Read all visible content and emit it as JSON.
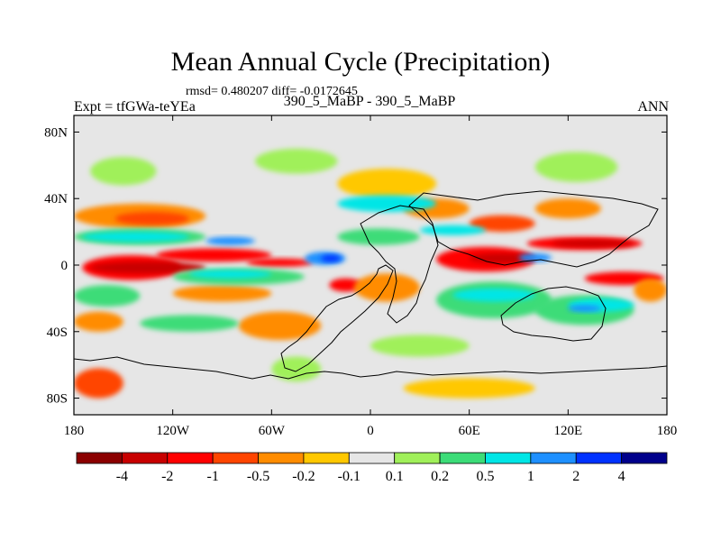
{
  "title": "Mean Annual Cycle (Precipitation)",
  "stats_line": "rmsd= 0.480207 diff= -0.0172645",
  "expt_label": "Expt = tfGWa-teYEa",
  "case_label": "390_5_MaBP - 390_5_MaBP",
  "season_label": "ANN",
  "chart_data": {
    "type": "heatmap",
    "title": "Mean Annual Cycle (Precipitation)",
    "variable": "Precipitation difference",
    "x_range": [
      -180,
      180
    ],
    "y_range": [
      -90,
      90
    ],
    "x_ticks": [
      {
        "value": -180,
        "label": "180"
      },
      {
        "value": -120,
        "label": "120W"
      },
      {
        "value": -60,
        "label": "60W"
      },
      {
        "value": 0,
        "label": "0"
      },
      {
        "value": 60,
        "label": "60E"
      },
      {
        "value": 120,
        "label": "120E"
      },
      {
        "value": 180,
        "label": "180"
      }
    ],
    "y_ticks": [
      {
        "value": 80,
        "label": "80N"
      },
      {
        "value": 40,
        "label": "40N"
      },
      {
        "value": 0,
        "label": "0"
      },
      {
        "value": -40,
        "label": "40S"
      },
      {
        "value": -80,
        "label": "80S"
      }
    ],
    "colorbar": {
      "colors": [
        "#8b0000",
        "#c80000",
        "#ff0000",
        "#ff4500",
        "#ff8c00",
        "#ffc800",
        "#e6e6e6",
        "#a0f05a",
        "#3cdc78",
        "#00e6e6",
        "#1e90ff",
        "#0032ff",
        "#00008b"
      ],
      "boundaries": [
        "-4",
        "-2",
        "-1",
        "-0.5",
        "-0.2",
        "-0.1",
        "0.1",
        "0.2",
        "0.5",
        "1",
        "2",
        "4"
      ]
    },
    "regions": [
      {
        "category": "decrease",
        "level": 3,
        "lon": [
          -175,
          -115
        ],
        "lat": [
          -9,
          6
        ]
      },
      {
        "category": "decrease",
        "level": 3,
        "lon": [
          -130,
          -60
        ],
        "lat": [
          2,
          10
        ]
      },
      {
        "category": "decrease",
        "level": 3,
        "lon": [
          -75,
          -35
        ],
        "lat": [
          -1,
          4
        ]
      },
      {
        "category": "decrease",
        "level": 3,
        "lon": [
          40,
          100
        ],
        "lat": [
          -4,
          11
        ]
      },
      {
        "category": "decrease",
        "level": 3,
        "lon": [
          95,
          165
        ],
        "lat": [
          9,
          17
        ]
      },
      {
        "category": "decrease",
        "level": 3,
        "lon": [
          130,
          178
        ],
        "lat": [
          -12,
          -4
        ]
      },
      {
        "category": "decrease",
        "level": 3,
        "lon": [
          -25,
          -5
        ],
        "lat": [
          -16,
          -8
        ]
      },
      {
        "category": "decrease",
        "level": 4,
        "lon": [
          -170,
          -100
        ],
        "lat": [
          -5,
          2
        ]
      },
      {
        "category": "decrease",
        "level": 4,
        "lon": [
          60,
          100
        ],
        "lat": [
          1,
          7
        ]
      },
      {
        "category": "decrease",
        "level": 4,
        "lon": [
          110,
          160
        ],
        "lat": [
          11,
          15
        ]
      },
      {
        "category": "decrease",
        "level": 1,
        "lon": [
          -180,
          -100
        ],
        "lat": [
          22,
          37
        ]
      },
      {
        "category": "decrease",
        "level": 1,
        "lon": [
          -80,
          -30
        ],
        "lat": [
          -45,
          -28
        ]
      },
      {
        "category": "decrease",
        "level": 1,
        "lon": [
          -180,
          -150
        ],
        "lat": [
          -40,
          -28
        ]
      },
      {
        "category": "decrease",
        "level": 1,
        "lon": [
          -120,
          -60
        ],
        "lat": [
          -22,
          -12
        ]
      },
      {
        "category": "decrease",
        "level": 1,
        "lon": [
          -10,
          30
        ],
        "lat": [
          -22,
          -5
        ]
      },
      {
        "category": "decrease",
        "level": 1,
        "lon": [
          160,
          180
        ],
        "lat": [
          -22,
          -8
        ]
      },
      {
        "category": "decrease",
        "level": 1,
        "lon": [
          20,
          60
        ],
        "lat": [
          28,
          40
        ]
      },
      {
        "category": "decrease",
        "level": 1,
        "lon": [
          100,
          140
        ],
        "lat": [
          28,
          40
        ]
      },
      {
        "category": "decrease",
        "level": 2,
        "lon": [
          -155,
          -110
        ],
        "lat": [
          24,
          32
        ]
      },
      {
        "category": "decrease",
        "level": 2,
        "lon": [
          60,
          100
        ],
        "lat": [
          20,
          30
        ]
      },
      {
        "category": "decrease",
        "level": 2,
        "lon": [
          -180,
          -150
        ],
        "lat": [
          -80,
          -62
        ]
      },
      {
        "category": "decrease",
        "level": 0,
        "lon": [
          -20,
          40
        ],
        "lat": [
          40,
          58
        ]
      },
      {
        "category": "decrease",
        "level": 0,
        "lon": [
          20,
          100
        ],
        "lat": [
          -80,
          -68
        ]
      },
      {
        "category": "increase",
        "level": 0,
        "lon": [
          -170,
          -130
        ],
        "lat": [
          48,
          65
        ]
      },
      {
        "category": "increase",
        "level": 0,
        "lon": [
          -70,
          -20
        ],
        "lat": [
          55,
          70
        ]
      },
      {
        "category": "increase",
        "level": 0,
        "lon": [
          100,
          150
        ],
        "lat": [
          50,
          68
        ]
      },
      {
        "category": "increase",
        "level": 0,
        "lon": [
          -60,
          -30
        ],
        "lat": [
          -70,
          -55
        ]
      },
      {
        "category": "increase",
        "level": 0,
        "lon": [
          0,
          60
        ],
        "lat": [
          -55,
          -42
        ]
      },
      {
        "category": "increase",
        "level": 1,
        "lon": [
          -180,
          -100
        ],
        "lat": [
          12,
          22
        ]
      },
      {
        "category": "increase",
        "level": 1,
        "lon": [
          -120,
          -40
        ],
        "lat": [
          -12,
          -2
        ]
      },
      {
        "category": "increase",
        "level": 1,
        "lon": [
          -180,
          -140
        ],
        "lat": [
          -25,
          -12
        ]
      },
      {
        "category": "increase",
        "level": 1,
        "lon": [
          -20,
          30
        ],
        "lat": [
          12,
          22
        ]
      },
      {
        "category": "increase",
        "level": 1,
        "lon": [
          40,
          110
        ],
        "lat": [
          -32,
          -10
        ]
      },
      {
        "category": "increase",
        "level": 1,
        "lon": [
          100,
          160
        ],
        "lat": [
          -36,
          -18
        ]
      },
      {
        "category": "increase",
        "level": 1,
        "lon": [
          -140,
          -80
        ],
        "lat": [
          -40,
          -30
        ]
      },
      {
        "category": "increase",
        "level": 2,
        "lon": [
          -175,
          -110
        ],
        "lat": [
          14,
          20
        ]
      },
      {
        "category": "increase",
        "level": 2,
        "lon": [
          -110,
          -60
        ],
        "lat": [
          -8,
          -3
        ]
      },
      {
        "category": "increase",
        "level": 2,
        "lon": [
          50,
          100
        ],
        "lat": [
          -22,
          -14
        ]
      },
      {
        "category": "increase",
        "level": 2,
        "lon": [
          30,
          70
        ],
        "lat": [
          18,
          24
        ]
      },
      {
        "category": "increase",
        "level": 2,
        "lon": [
          -20,
          40
        ],
        "lat": [
          32,
          42
        ]
      },
      {
        "category": "increase",
        "level": 2,
        "lon": [
          120,
          160
        ],
        "lat": [
          -28,
          -20
        ]
      },
      {
        "category": "increase",
        "level": 3,
        "lon": [
          -40,
          -15
        ],
        "lat": [
          0,
          8
        ]
      },
      {
        "category": "increase",
        "level": 3,
        "lon": [
          -100,
          -70
        ],
        "lat": [
          12,
          17
        ]
      },
      {
        "category": "increase",
        "level": 3,
        "lon": [
          90,
          110
        ],
        "lat": [
          2,
          7
        ]
      },
      {
        "category": "increase",
        "level": 3,
        "lon": [
          120,
          140
        ],
        "lat": [
          -28,
          -24
        ]
      },
      {
        "category": "increase",
        "level": 4,
        "lon": [
          -30,
          -18
        ],
        "lat": [
          2,
          6
        ]
      }
    ]
  }
}
